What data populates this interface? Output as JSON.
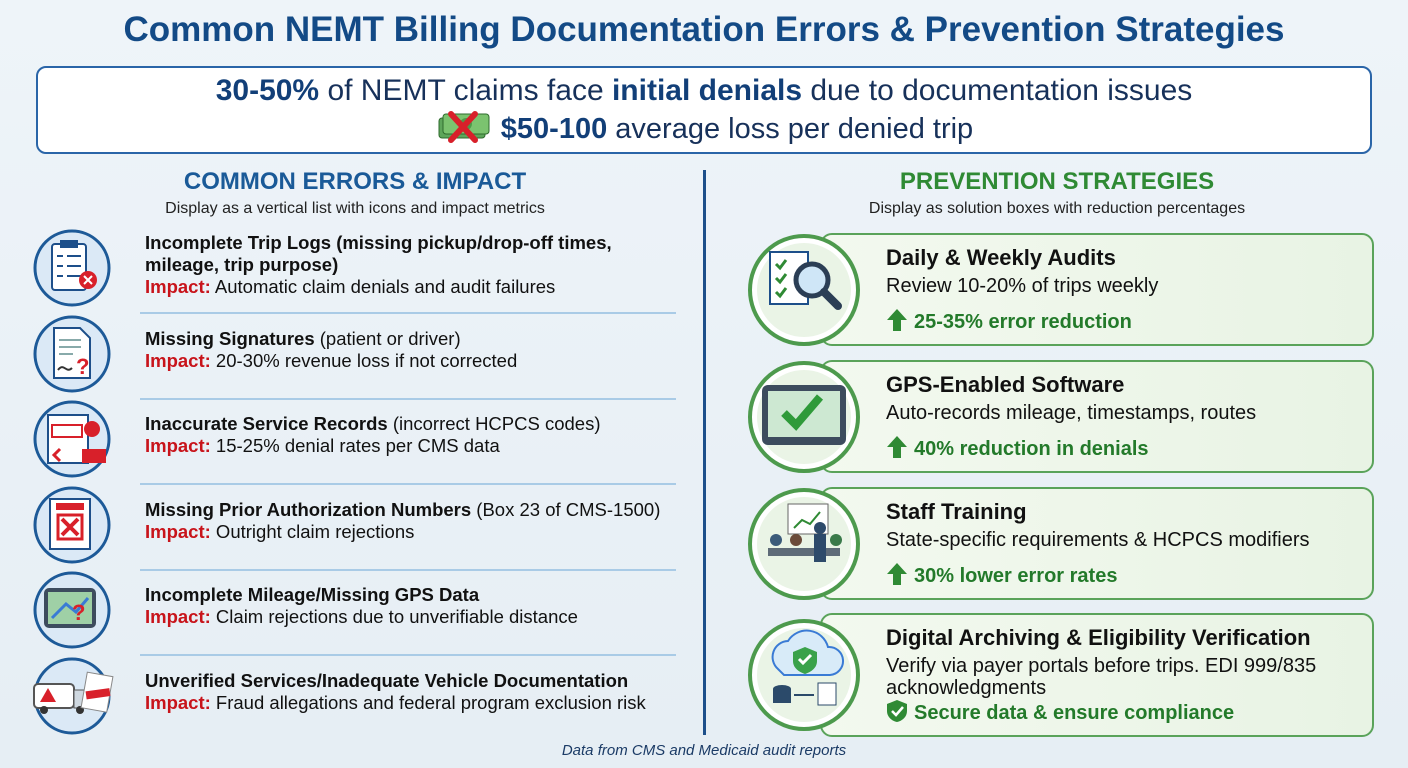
{
  "header": {
    "title": "Common NEMT Billing Documentation Errors & Prevention Strategies"
  },
  "banner": {
    "line1": [
      {
        "text": "30-50%",
        "bold": true
      },
      {
        "text": " of NEMT claims face ",
        "bold": false
      },
      {
        "text": "initial denials",
        "bold": true
      },
      {
        "text": " due to documentation issues",
        "bold": false
      }
    ],
    "line2": [
      {
        "text": "$50-100",
        "bold": true
      },
      {
        "text": " average loss per denied trip",
        "bold": false
      }
    ]
  },
  "errors": {
    "heading": "COMMON ERRORS & IMPACT",
    "subheading": "Display as a vertical list with icons and impact metrics",
    "items": [
      {
        "title": "Incomplete Trip Logs (missing pickup/drop-off times, mileage, trip purpose)",
        "detail": "",
        "impact_label": "Impact:",
        "impact": " Automatic claim denials and audit failures"
      },
      {
        "title": "Missing Signatures",
        "detail": " (patient or driver)",
        "impact_label": "Impact:",
        "impact": " 20-30% revenue loss if not corrected"
      },
      {
        "title": "Inaccurate Service Records",
        "detail": " (incorrect HCPCS codes)",
        "impact_label": "Impact:",
        "impact": " 15-25% denial rates per CMS data"
      },
      {
        "title": "Missing Prior Authorization Numbers",
        "detail": " (Box 23 of CMS-1500)",
        "impact_label": "Impact:",
        "impact": " Outright claim rejections"
      },
      {
        "title": "Incomplete Mileage/Missing GPS Data",
        "detail": "",
        "impact_label": "Impact:",
        "impact": " Claim rejections due to unverifiable distance"
      },
      {
        "title": "Unverified Services/Inadequate Vehicle Documentation",
        "detail": "",
        "impact_label": "Impact:",
        "impact": " Fraud allegations and federal program exclusion risk"
      }
    ]
  },
  "strategies": {
    "heading": "PREVENTION STRATEGIES",
    "subheading": "Display as solution boxes with reduction percentages",
    "items": [
      {
        "title": "Daily & Weekly Audits",
        "description": "Review 10-20% of trips weekly",
        "result": "25-35% error reduction"
      },
      {
        "title": "GPS-Enabled Software",
        "description": "Auto-records mileage, timestamps, routes",
        "result": "40% reduction in denials"
      },
      {
        "title": "Staff Training",
        "description": "State-specific requirements & HCPCS modifiers",
        "result": "30% lower error rates"
      },
      {
        "title": "Digital Archiving & Eligibility Verification",
        "description": "Verify via payer portals before trips. EDI 999/835 acknowledgments",
        "result": "Secure data & ensure compliance"
      }
    ]
  },
  "footer": {
    "source": "Data from CMS and Medicaid audit reports"
  }
}
